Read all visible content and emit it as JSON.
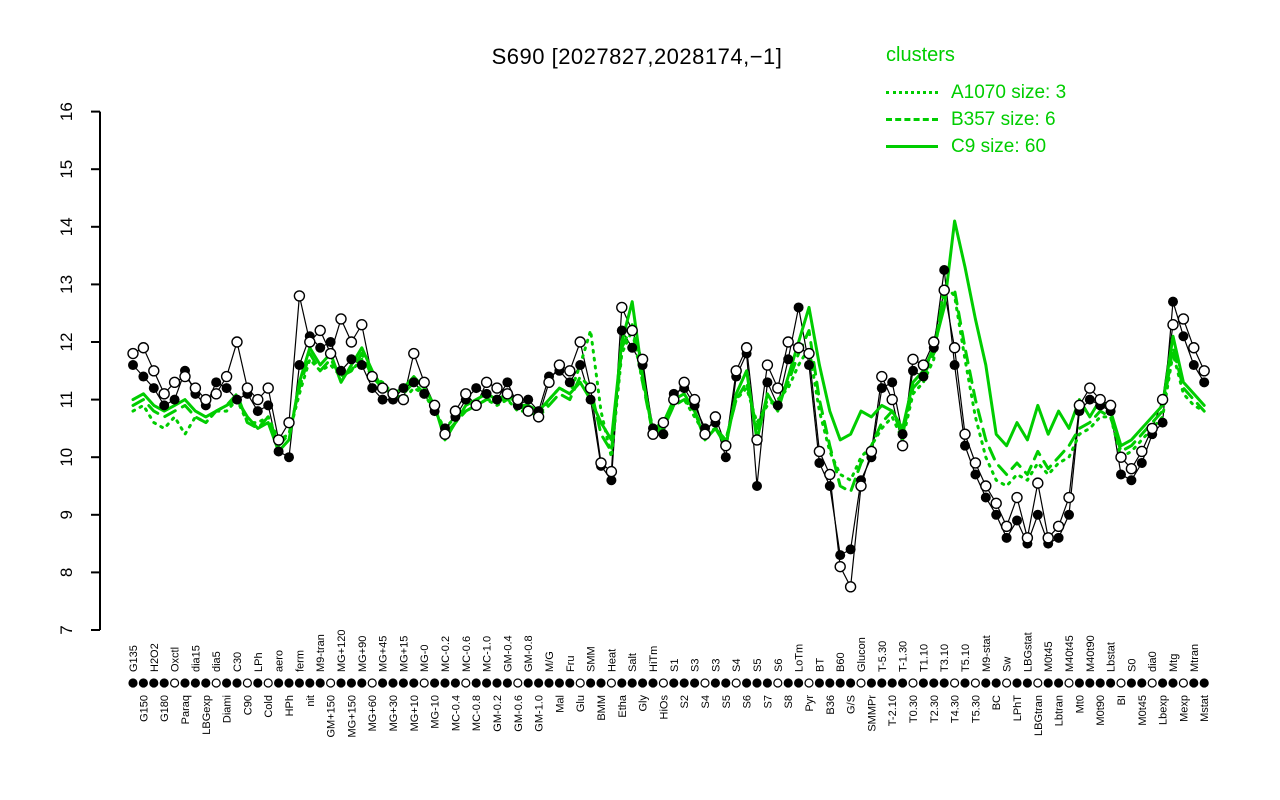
{
  "legend": {
    "title": "clusters",
    "items": [
      {
        "label": "A1070 size: 3",
        "style": "dotted"
      },
      {
        "label": "B357 size: 6",
        "style": "dashed"
      },
      {
        "label": "C9 size: 60",
        "style": "solid"
      }
    ]
  },
  "chart_data": {
    "type": "line",
    "title": "S690 [2027827,2028174,−1]",
    "ylim": [
      7,
      16
    ],
    "y_axis": {
      "ticks": [
        7,
        8,
        9,
        10,
        11,
        12,
        13,
        14,
        15,
        16
      ]
    },
    "categories": [
      "G135",
      "G150",
      "H2O2",
      "G180",
      "Oxctl",
      "Paraq",
      "dia15",
      "LBGexp",
      "dia5",
      "Diami",
      "C30",
      "C90",
      "LPh",
      "Cold",
      "aero",
      "HPh",
      "ferm",
      "nit",
      "M9-tran",
      "GM+150",
      "MG+120",
      "MG+150",
      "MG+90",
      "MG+60",
      "MG+45",
      "MG+30",
      "MG+15",
      "MG+10",
      "MG-0",
      "MG-10",
      "MC-0.2",
      "MC-0.4",
      "MC-0.6",
      "MC-0.8",
      "MC-1.0",
      "GM-0.2",
      "GM-0.4",
      "GM-0.6",
      "GM-0.8",
      "GM-1.0",
      "M/G",
      "Mal",
      "Fru",
      "Glu",
      "SMM",
      "BMM",
      "Heat",
      "Etha",
      "Salt",
      "Gly",
      "HiTm",
      "HiOs",
      "S1",
      "S2",
      "S3",
      "S4",
      "S3",
      "S5",
      "S4",
      "S6",
      "S5",
      "S7",
      "S6",
      "S8",
      "LoTm",
      "Pyr",
      "BT",
      "B36",
      "B60",
      "G/S",
      "Glucon",
      "SMMPr",
      "T-5.30",
      "T-2.10",
      "T-1.30",
      "T0.30",
      "T1.10",
      "T2.30",
      "T3.10",
      "T4.30",
      "T5.10",
      "T5.30",
      "M9-stat",
      "BC",
      "Sw",
      "LPhT",
      "LBGstat",
      "LBGtran",
      "M0t45",
      "Lbtran",
      "M40t45",
      "Mt0",
      "M40t90",
      "M0t90",
      "Lbstat",
      "BI",
      "S0",
      "M0t45",
      "dia0",
      "Lbexp",
      "Mtg",
      "Mexp",
      "Mtran",
      "Mstat"
    ],
    "series": {
      "filled": {
        "name": "probe profile (filled points)",
        "marker": "filled-circle",
        "color": "#000000",
        "values": [
          11.6,
          11.4,
          11.2,
          10.9,
          11.0,
          11.5,
          11.1,
          10.9,
          11.3,
          11.2,
          11.0,
          11.1,
          10.8,
          10.9,
          10.1,
          10.0,
          11.6,
          12.1,
          11.9,
          12.0,
          11.5,
          11.7,
          11.6,
          11.2,
          11.0,
          11.0,
          11.2,
          11.3,
          11.1,
          10.8,
          10.5,
          10.7,
          11.0,
          11.2,
          11.1,
          11.0,
          11.3,
          10.9,
          11.0,
          10.8,
          11.4,
          11.5,
          11.3,
          11.6,
          11.0,
          9.85,
          9.6,
          12.2,
          11.9,
          11.6,
          10.5,
          10.4,
          11.1,
          11.2,
          10.9,
          10.5,
          10.6,
          10.0,
          11.4,
          11.8,
          9.5,
          11.3,
          10.9,
          11.7,
          12.6,
          11.6,
          9.9,
          9.5,
          8.3,
          8.4,
          9.6,
          10.0,
          11.2,
          11.3,
          10.4,
          11.5,
          11.4,
          11.9,
          13.25,
          11.6,
          10.2,
          9.7,
          9.3,
          9.0,
          8.6,
          8.9,
          8.5,
          9.0,
          8.5,
          8.6,
          9.0,
          10.8,
          11.0,
          10.9,
          10.8,
          9.7,
          9.6,
          9.9,
          10.4,
          10.6,
          12.7,
          12.1,
          11.6,
          11.3
        ]
      },
      "open": {
        "name": "probe profile (open points)",
        "marker": "open-circle",
        "color": "#000000",
        "values": [
          11.8,
          11.9,
          11.5,
          11.1,
          11.3,
          11.4,
          11.2,
          11.0,
          11.1,
          11.4,
          12.0,
          11.2,
          11.0,
          11.2,
          10.3,
          10.6,
          12.8,
          12.0,
          12.2,
          11.8,
          12.4,
          12.0,
          12.3,
          11.4,
          11.2,
          11.1,
          11.0,
          11.8,
          11.3,
          10.9,
          10.4,
          10.8,
          11.1,
          10.9,
          11.3,
          11.2,
          11.1,
          11.0,
          10.8,
          10.7,
          11.3,
          11.6,
          11.5,
          12.0,
          11.2,
          9.9,
          9.75,
          12.6,
          12.2,
          11.7,
          10.4,
          10.6,
          11.0,
          11.3,
          11.0,
          10.4,
          10.7,
          10.2,
          11.5,
          11.9,
          10.3,
          11.6,
          11.2,
          12.0,
          11.9,
          11.8,
          10.1,
          9.7,
          8.1,
          7.75,
          9.5,
          10.1,
          11.4,
          11.0,
          10.2,
          11.7,
          11.6,
          12.0,
          12.9,
          11.9,
          10.4,
          9.9,
          9.5,
          9.2,
          8.8,
          9.3,
          8.6,
          9.55,
          8.6,
          8.8,
          9.3,
          10.9,
          11.2,
          11.0,
          10.9,
          10.0,
          9.8,
          10.1,
          10.5,
          11.0,
          12.3,
          12.4,
          11.9,
          11.5
        ]
      }
    },
    "clusters": [
      {
        "name": "A1070",
        "size": 3,
        "style": "dotted",
        "values": [
          10.8,
          10.9,
          10.6,
          10.5,
          10.7,
          10.4,
          10.7,
          10.6,
          10.8,
          10.8,
          11.0,
          10.6,
          10.6,
          10.7,
          10.3,
          10.4,
          11.1,
          11.7,
          11.5,
          11.6,
          11.4,
          11.5,
          11.7,
          11.4,
          11.3,
          11.1,
          11.0,
          11.2,
          11.1,
          10.8,
          10.5,
          10.7,
          10.8,
          10.9,
          11.0,
          10.9,
          11.0,
          10.8,
          10.8,
          10.7,
          11.0,
          11.2,
          11.1,
          11.6,
          12.2,
          10.8,
          10.0,
          11.8,
          12.2,
          11.3,
          10.5,
          10.6,
          10.9,
          11.0,
          10.7,
          10.4,
          10.5,
          10.3,
          11.0,
          11.2,
          10.6,
          10.9,
          11.0,
          11.2,
          11.6,
          11.9,
          10.8,
          10.1,
          9.7,
          9.6,
          10.0,
          10.2,
          10.5,
          10.7,
          10.3,
          11.1,
          11.3,
          11.7,
          13.0,
          12.8,
          11.7,
          10.7,
          10.0,
          9.6,
          9.5,
          9.7,
          9.6,
          9.9,
          9.7,
          9.9,
          10.0,
          10.4,
          10.5,
          10.7,
          10.7,
          10.0,
          10.1,
          10.3,
          10.5,
          10.7,
          11.8,
          11.1,
          10.9,
          10.8
        ]
      },
      {
        "name": "B357",
        "size": 6,
        "style": "dashed",
        "values": [
          10.9,
          11.0,
          10.8,
          10.7,
          10.8,
          10.9,
          10.7,
          10.6,
          10.8,
          10.9,
          11.1,
          10.6,
          10.5,
          10.7,
          10.2,
          10.4,
          11.2,
          11.8,
          11.5,
          11.7,
          11.4,
          11.5,
          11.8,
          11.4,
          11.2,
          11.0,
          11.1,
          11.3,
          11.1,
          10.9,
          10.4,
          10.6,
          10.8,
          10.9,
          11.0,
          11.0,
          11.0,
          10.9,
          10.8,
          10.7,
          10.9,
          11.1,
          11.0,
          11.4,
          11.2,
          10.4,
          10.1,
          11.9,
          12.3,
          11.3,
          10.4,
          10.5,
          10.9,
          11.0,
          10.8,
          10.4,
          10.5,
          10.3,
          11.0,
          11.3,
          10.5,
          11.0,
          10.9,
          11.3,
          11.8,
          12.2,
          11.0,
          10.2,
          9.5,
          9.4,
          9.9,
          10.2,
          10.6,
          10.8,
          10.4,
          11.2,
          11.4,
          11.8,
          12.9,
          12.9,
          11.9,
          11.0,
          10.3,
          9.9,
          9.7,
          9.9,
          9.7,
          10.1,
          9.8,
          10.0,
          10.2,
          10.5,
          10.6,
          10.8,
          10.7,
          10.1,
          10.2,
          10.4,
          10.6,
          10.8,
          11.9,
          11.2,
          11.0,
          10.8
        ]
      },
      {
        "name": "C9",
        "size": 60,
        "style": "solid",
        "values": [
          11.0,
          11.1,
          10.9,
          10.8,
          10.9,
          11.0,
          10.8,
          10.7,
          10.8,
          10.9,
          11.0,
          10.7,
          10.5,
          10.6,
          10.1,
          10.3,
          11.3,
          11.9,
          11.6,
          11.8,
          11.3,
          11.6,
          11.9,
          11.5,
          11.2,
          11.1,
          11.2,
          11.4,
          11.2,
          10.9,
          10.3,
          10.6,
          10.9,
          11.0,
          11.1,
          11.0,
          11.1,
          10.9,
          10.9,
          10.8,
          11.0,
          11.2,
          11.1,
          11.3,
          11.0,
          10.6,
          10.3,
          12.0,
          12.7,
          11.4,
          10.4,
          10.6,
          11.0,
          11.1,
          10.8,
          10.3,
          10.5,
          10.2,
          11.1,
          11.5,
          10.3,
          11.1,
          10.8,
          11.4,
          12.0,
          12.6,
          11.6,
          10.8,
          10.3,
          10.4,
          10.8,
          10.7,
          10.9,
          10.8,
          10.5,
          11.3,
          11.5,
          11.9,
          12.6,
          14.1,
          13.3,
          12.4,
          11.6,
          10.4,
          10.2,
          10.6,
          10.3,
          10.9,
          10.4,
          10.8,
          10.5,
          11.0,
          10.7,
          11.0,
          10.8,
          10.2,
          10.3,
          10.5,
          10.7,
          10.9,
          12.1,
          11.3,
          11.1,
          10.9
        ]
      }
    ],
    "axis_point_row": [
      1,
      1,
      1,
      1,
      0,
      1,
      1,
      1,
      0,
      1,
      1,
      0,
      1,
      0,
      1,
      1,
      1,
      1,
      1,
      0,
      1,
      1,
      1,
      0,
      1,
      1,
      1,
      1,
      0,
      1,
      1,
      1,
      0,
      1,
      1,
      1,
      1,
      0,
      1,
      1,
      1,
      1,
      1,
      0,
      1,
      1,
      0,
      1,
      1,
      1,
      1,
      0,
      1,
      1,
      1,
      0,
      1,
      1,
      0,
      1,
      1,
      1,
      0,
      1,
      1,
      0,
      1,
      1,
      1,
      1,
      0,
      1,
      1,
      1,
      1,
      0,
      1,
      1,
      1,
      0,
      1,
      0,
      1,
      1,
      0,
      1,
      1,
      0,
      1,
      1,
      0,
      1,
      1,
      1,
      1,
      0,
      1,
      1,
      0,
      1,
      1,
      0,
      1,
      1
    ],
    "colors": {
      "cluster_green": "#00CD00",
      "black": "#000000"
    }
  }
}
